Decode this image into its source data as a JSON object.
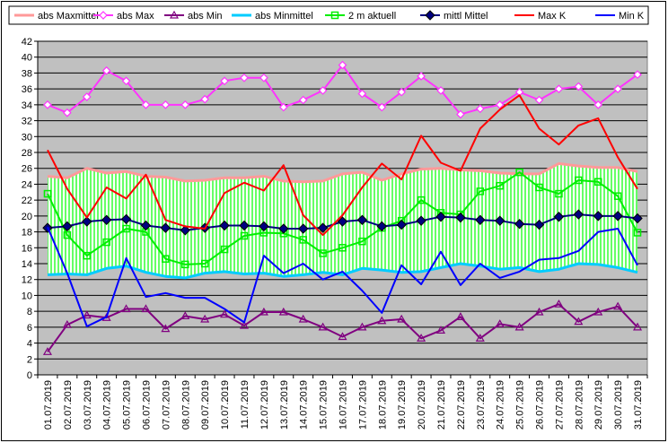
{
  "chart_data": {
    "type": "line",
    "title": "",
    "xlabel": "",
    "ylabel": "",
    "ylim": [
      0,
      42
    ],
    "ytick_step": 2,
    "grid": true,
    "legend_position": "top",
    "plot_background": "#c0c0c0",
    "band_color": "#66ff66",
    "x": [
      "01.07.2019",
      "02.07.2019",
      "03.07.2019",
      "04.07.2019",
      "05.07.2019",
      "06.07.2019",
      "07.07.2019",
      "08.07.2019",
      "09.07.2019",
      "10.07.2019",
      "11.07.2019",
      "12.07.2019",
      "13.07.2019",
      "14.07.2019",
      "15.07.2019",
      "16.07.2019",
      "17.07.2019",
      "18.07.2019",
      "19.07.2019",
      "20.07.2019",
      "21.07.2019",
      "22.07.2019",
      "23.07.2019",
      "24.07.2019",
      "25.07.2019",
      "26.07.2019",
      "27.07.2019",
      "28.07.2019",
      "29.07.2019",
      "30.07.2019",
      "31.07.2019"
    ],
    "series": [
      {
        "name": "abs Maxmittel",
        "color": "#ff9999",
        "marker": "none",
        "width": 3,
        "values": [
          25.0,
          24.8,
          26.0,
          25.4,
          25.6,
          25.0,
          24.9,
          24.4,
          24.5,
          24.8,
          24.8,
          25.0,
          24.4,
          24.3,
          24.4,
          25.3,
          25.5,
          24.5,
          25.3,
          25.9,
          26.0,
          25.8,
          25.7,
          25.4,
          25.3,
          25.3,
          26.6,
          26.3,
          26.1,
          26.1,
          25.6
        ]
      },
      {
        "name": "abs Max",
        "color": "#ff33ff",
        "marker": "diamond-open",
        "width": 2,
        "values": [
          34.0,
          33.0,
          35.0,
          38.3,
          37.0,
          34.0,
          34.0,
          34.0,
          34.7,
          37.0,
          37.4,
          37.4,
          33.7,
          34.6,
          35.8,
          39.0,
          35.4,
          33.7,
          35.6,
          37.6,
          35.8,
          32.8,
          33.5,
          34.0,
          35.6,
          34.6,
          36.0,
          36.3,
          34.0,
          36.0,
          37.8
        ]
      },
      {
        "name": "abs Min",
        "color": "#800080",
        "marker": "triangle-open",
        "width": 2,
        "values": [
          2.9,
          6.3,
          7.5,
          7.2,
          8.3,
          8.3,
          5.8,
          7.4,
          7.0,
          7.6,
          6.2,
          7.9,
          7.9,
          7.0,
          6.0,
          4.8,
          6.0,
          6.8,
          7.0,
          4.6,
          5.6,
          7.3,
          4.6,
          6.4,
          6.0,
          7.9,
          8.9,
          6.7,
          7.9,
          8.6,
          6.0
        ]
      },
      {
        "name": "abs Minmittel",
        "color": "#00ccff",
        "marker": "none",
        "width": 3,
        "values": [
          12.6,
          12.7,
          12.6,
          13.4,
          13.7,
          12.9,
          12.4,
          12.2,
          12.8,
          13.0,
          12.7,
          12.8,
          12.4,
          12.6,
          12.9,
          12.6,
          13.4,
          13.2,
          12.9,
          13.0,
          13.5,
          14.0,
          13.7,
          13.3,
          13.5,
          13.0,
          13.3,
          14.0,
          13.9,
          13.5,
          12.9
        ]
      },
      {
        "name": "2 m aktuell",
        "color": "#00ee00",
        "marker": "square-open",
        "width": 2,
        "values": [
          22.8,
          17.6,
          15.0,
          16.7,
          18.4,
          18.0,
          14.6,
          13.9,
          14.0,
          15.8,
          17.5,
          17.9,
          17.8,
          17.0,
          15.3,
          16.0,
          16.8,
          18.5,
          19.4,
          22.0,
          20.4,
          20.2,
          23.1,
          23.8,
          25.5,
          23.6,
          22.8,
          24.5,
          24.3,
          22.5,
          17.9
        ]
      },
      {
        "name": "mittl Mittel",
        "color": "#000080",
        "marker": "diamond-filled",
        "width": 2,
        "values": [
          18.5,
          18.7,
          19.3,
          19.5,
          19.6,
          18.8,
          18.5,
          18.2,
          18.5,
          18.8,
          18.8,
          18.7,
          18.4,
          18.4,
          18.5,
          19.3,
          19.5,
          18.7,
          18.9,
          19.4,
          19.9,
          19.8,
          19.5,
          19.4,
          19.0,
          18.9,
          19.9,
          20.2,
          20.0,
          20.0,
          19.7
        ]
      },
      {
        "name": "Max K",
        "color": "#ff0000",
        "marker": "none",
        "width": 2,
        "values": [
          28.3,
          23.4,
          19.8,
          23.6,
          22.2,
          25.2,
          19.5,
          18.7,
          18.4,
          22.9,
          24.2,
          23.2,
          26.4,
          20.1,
          17.6,
          20.1,
          23.6,
          26.6,
          24.6,
          30.1,
          26.7,
          25.7,
          31.0,
          33.4,
          35.2,
          31.0,
          29.0,
          31.4,
          32.3,
          27.4,
          23.4
        ]
      },
      {
        "name": "Min K",
        "color": "#0000ff",
        "marker": "none",
        "width": 2,
        "values": [
          18.6,
          12.8,
          6.1,
          7.3,
          14.7,
          9.8,
          10.3,
          9.7,
          9.7,
          8.3,
          6.6,
          15.0,
          12.8,
          14.0,
          12.0,
          13.0,
          10.6,
          7.8,
          13.8,
          11.4,
          15.5,
          11.3,
          14.0,
          12.2,
          13.0,
          14.5,
          14.7,
          15.6,
          18.0,
          18.4,
          13.8
        ]
      }
    ]
  }
}
